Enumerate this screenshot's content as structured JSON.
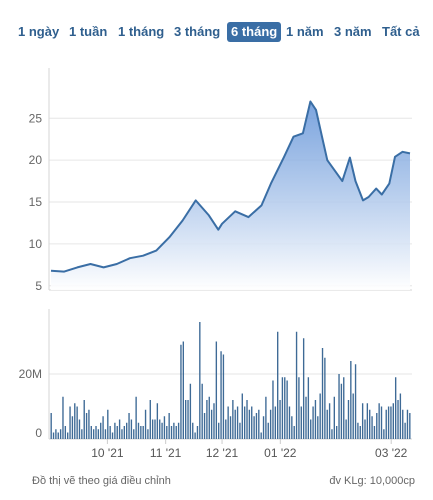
{
  "range_tabs": [
    {
      "label": "1 ngày",
      "active": false
    },
    {
      "label": "1 tuần",
      "active": false
    },
    {
      "label": "1 tháng",
      "active": false
    },
    {
      "label": "3 tháng",
      "active": false
    },
    {
      "label": "6 tháng",
      "active": true
    },
    {
      "label": "1 năm",
      "active": false
    },
    {
      "label": "3 năm",
      "active": false
    },
    {
      "label": "Tất cả",
      "active": false
    }
  ],
  "footer": {
    "note": "Đồ thị vẽ theo giá điều chỉnh",
    "unit": "đv KLg: 10,000cp"
  },
  "colors": {
    "line": "#3a6ea5",
    "fill_top": "#5b8ed6",
    "fill_bottom": "#ffffff",
    "bar": "#3e6a96",
    "tab_text": "#2f5f8e",
    "tab_active_bg": "#3a6ea5"
  },
  "chart_data": [
    {
      "type": "area",
      "grid": true,
      "ylim": [
        4.5,
        31
      ],
      "yticks": [
        "5",
        "10",
        "15",
        "20",
        "25"
      ],
      "x_range": [
        "2021-09-01",
        "2022-03-11"
      ],
      "x": [
        "2021-09-01",
        "2021-09-08",
        "2021-09-15",
        "2021-09-22",
        "2021-09-29",
        "2021-10-06",
        "2021-10-13",
        "2021-10-20",
        "2021-10-27",
        "2021-11-03",
        "2021-11-10",
        "2021-11-17",
        "2021-11-24",
        "2021-11-29",
        "2021-12-01",
        "2021-12-08",
        "2021-12-15",
        "2021-12-22",
        "2021-12-27",
        "2022-01-03",
        "2022-01-08",
        "2022-01-13",
        "2022-01-17",
        "2022-01-20",
        "2022-01-24",
        "2022-01-26",
        "2022-02-03",
        "2022-02-07",
        "2022-02-10",
        "2022-02-14",
        "2022-02-17",
        "2022-02-21",
        "2022-02-24",
        "2022-02-28",
        "2022-03-03",
        "2022-03-07",
        "2022-03-11"
      ],
      "y": [
        6.8,
        6.7,
        7.2,
        7.6,
        7.2,
        7.6,
        8.3,
        8.6,
        9.2,
        10.8,
        12.8,
        15.2,
        13.4,
        11.7,
        12.4,
        13.9,
        13.2,
        14.6,
        17.2,
        20.4,
        22.8,
        23.2,
        27.0,
        26.0,
        22.0,
        20.0,
        17.5,
        20.3,
        17.5,
        15.2,
        15.6,
        16.6,
        15.9,
        17.2,
        20.4,
        21.0,
        20.8
      ]
    },
    {
      "type": "bar",
      "ylim": [
        0,
        40
      ],
      "ytick_values": [
        0,
        20
      ],
      "yticks": [
        "0",
        "20M"
      ],
      "x_ticks": [
        {
          "date": "2021-10-01",
          "label": "10 '21"
        },
        {
          "date": "2021-11-01",
          "label": "11 '21"
        },
        {
          "date": "2021-12-01",
          "label": "12 '21"
        },
        {
          "date": "2022-01-01",
          "label": "01 '22"
        },
        {
          "date": "2022-03-01",
          "label": "03 '22"
        }
      ],
      "x_range": [
        "2021-09-01",
        "2022-03-11"
      ],
      "values": [
        8,
        2,
        3,
        2,
        3,
        13,
        4,
        2,
        10,
        7,
        11,
        10,
        6,
        3,
        12,
        8,
        9,
        4,
        3,
        4,
        3,
        5,
        7,
        3,
        9,
        4,
        2,
        5,
        4,
        6,
        3,
        4,
        5,
        8,
        6,
        3,
        13,
        5,
        4,
        4,
        9,
        3,
        12,
        6,
        6,
        11,
        6,
        5,
        7,
        4,
        8,
        4,
        5,
        4,
        5,
        29,
        30,
        12,
        12,
        17,
        5,
        2,
        4,
        36,
        17,
        8,
        12,
        13,
        9,
        11,
        30,
        5,
        27,
        26,
        6,
        10,
        7,
        12,
        9,
        10,
        5,
        14,
        10,
        12,
        9,
        10,
        7,
        8,
        9,
        2,
        7,
        13,
        5,
        9,
        18,
        10,
        33,
        12,
        19,
        19,
        18,
        10,
        7,
        4,
        33,
        19,
        10,
        31,
        13,
        19,
        6,
        10,
        12,
        7,
        14,
        28,
        25,
        9,
        11,
        3,
        13,
        4,
        20,
        17,
        19,
        6,
        12,
        24,
        14,
        23,
        5,
        4,
        11,
        6,
        11,
        9,
        7,
        4,
        8,
        11,
        10,
        3,
        9,
        10,
        10,
        11,
        19,
        12,
        14,
        9,
        5,
        9,
        8
      ]
    }
  ]
}
